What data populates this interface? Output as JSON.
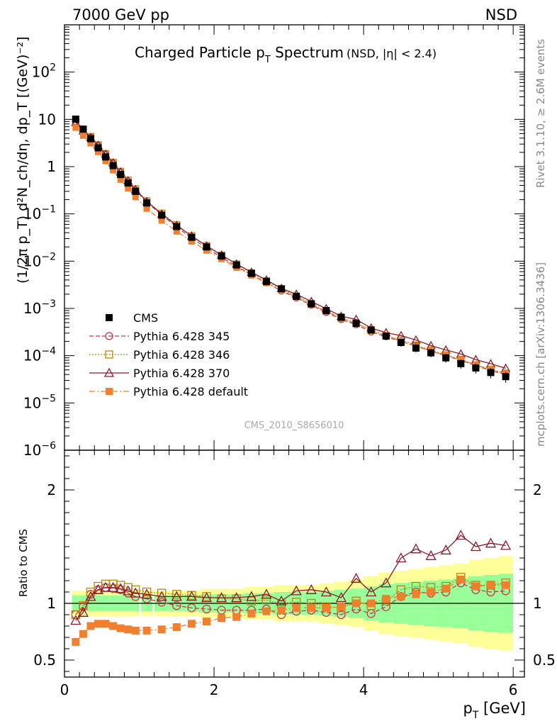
{
  "header": {
    "energy_label": "7000 GeV pp",
    "process_label": "NSD"
  },
  "side_labels": {
    "rivet": "Rivet 3.1.10, ≥ 2.6M events",
    "mcplots": "mcplots.cern.ch [arXiv:1306.3436]"
  },
  "chart_data": [
    {
      "type": "scatter",
      "panel": "main",
      "title": "Charged Particle p",
      "title_sub": "T",
      "title_tail": " Spectrum",
      "title_note": "(NSD, |η| < 2.4)",
      "ylabel": "(1/2π p_T) d²N_ch/dη, dp_T [(GeV)⁻²]",
      "yscale": "log",
      "xlim": [
        0,
        6.15
      ],
      "ylim": [
        1e-06,
        1000
      ],
      "watermark": "CMS_2010_S8656010",
      "y_tick_labels": [
        {
          "v": 1e-06,
          "base": "10",
          "exp": "−6"
        },
        {
          "v": 1e-05,
          "base": "10",
          "exp": "−5"
        },
        {
          "v": 0.0001,
          "base": "10",
          "exp": "−4"
        },
        {
          "v": 0.001,
          "base": "10",
          "exp": "−3"
        },
        {
          "v": 0.01,
          "base": "10",
          "exp": "−2"
        },
        {
          "v": 0.1,
          "base": "10",
          "exp": "−1"
        },
        {
          "v": 1,
          "base": "1",
          "exp": ""
        },
        {
          "v": 10,
          "base": "10",
          "exp": ""
        },
        {
          "v": 100,
          "base": "10",
          "exp": "2"
        }
      ],
      "legend": [
        {
          "name": "CMS",
          "color": "#000000",
          "marker": "square-filled",
          "dash": ""
        },
        {
          "name": "Pythia 6.428 345",
          "color": "#c0394f",
          "marker": "circle-open",
          "dash": "6,3"
        },
        {
          "name": "Pythia 6.428 346",
          "color": "#b8860b",
          "marker": "square-open",
          "dash": "2,2"
        },
        {
          "name": "Pythia 6.428 370",
          "color": "#8b1a2b",
          "marker": "triangle-open",
          "dash": ""
        },
        {
          "name": "Pythia 6.428 default",
          "color": "#f08030",
          "marker": "square-filled",
          "dash": "8,3,2,3"
        }
      ],
      "x": [
        0.15,
        0.25,
        0.35,
        0.45,
        0.55,
        0.65,
        0.75,
        0.85,
        0.95,
        1.1,
        1.3,
        1.5,
        1.7,
        1.9,
        2.1,
        2.3,
        2.5,
        2.7,
        2.9,
        3.1,
        3.3,
        3.5,
        3.7,
        3.9,
        4.1,
        4.3,
        4.5,
        4.7,
        4.9,
        5.1,
        5.3,
        5.5,
        5.7,
        5.9
      ],
      "data_y": [
        10.1,
        6.2,
        3.9,
        2.5,
        1.6,
        1.05,
        0.68,
        0.45,
        0.3,
        0.17,
        0.094,
        0.054,
        0.032,
        0.02,
        0.0128,
        0.0083,
        0.0055,
        0.0037,
        0.0026,
        0.0018,
        0.00125,
        0.0009,
        0.00065,
        0.00048,
        0.00035,
        0.00026,
        0.00019,
        0.000145,
        0.000115,
        9e-05,
        6.8e-05,
        5.5e-05,
        4.4e-05,
        3.6e-05
      ],
      "data_err_frac": [
        0.07,
        0.07,
        0.07,
        0.07,
        0.07,
        0.07,
        0.07,
        0.07,
        0.07,
        0.07,
        0.07,
        0.07,
        0.07,
        0.08,
        0.08,
        0.08,
        0.09,
        0.09,
        0.1,
        0.1,
        0.1,
        0.11,
        0.12,
        0.13,
        0.15,
        0.17,
        0.18,
        0.19,
        0.2,
        0.21,
        0.22,
        0.24,
        0.25,
        0.26
      ],
      "ratios": [
        [
          0.9,
          0.97,
          1.08,
          1.12,
          1.14,
          1.13,
          1.12,
          1.09,
          1.06,
          1.04,
          1.01,
          0.98,
          0.96,
          0.95,
          0.94,
          0.94,
          0.94,
          0.95,
          0.9,
          0.93,
          0.94,
          0.92,
          0.9,
          0.95,
          0.91,
          0.97,
          1.06,
          1.1,
          1.09,
          1.1,
          1.18,
          1.12,
          1.1,
          1.11
        ],
        [
          0.9,
          0.98,
          1.1,
          1.15,
          1.17,
          1.17,
          1.16,
          1.14,
          1.12,
          1.1,
          1.09,
          1.08,
          1.07,
          1.06,
          1.04,
          1.04,
          1.02,
          1.03,
          0.99,
          1.01,
          1.0,
          0.97,
          0.96,
          1.02,
          0.98,
          1.02,
          1.12,
          1.15,
          1.14,
          1.15,
          1.23,
          1.16,
          1.16,
          1.18
        ],
        [
          0.85,
          0.92,
          1.06,
          1.12,
          1.14,
          1.14,
          1.13,
          1.11,
          1.09,
          1.08,
          1.06,
          1.06,
          1.06,
          1.05,
          1.05,
          1.05,
          1.06,
          1.08,
          1.02,
          1.11,
          1.12,
          1.1,
          1.05,
          1.22,
          1.1,
          1.18,
          1.4,
          1.48,
          1.42,
          1.47,
          1.6,
          1.5,
          1.53,
          1.51
        ],
        [
          0.66,
          0.73,
          0.8,
          0.82,
          0.82,
          0.8,
          0.78,
          0.77,
          0.76,
          0.76,
          0.77,
          0.79,
          0.82,
          0.84,
          0.87,
          0.88,
          0.91,
          0.93,
          0.94,
          0.96,
          0.96,
          0.96,
          0.97,
          1.0,
          1.0,
          1.04,
          1.06,
          1.08,
          1.1,
          1.13,
          1.21,
          1.15,
          1.16,
          1.16
        ]
      ]
    },
    {
      "type": "scatter",
      "panel": "ratio",
      "ylabel": "Ratio to CMS",
      "xlabel_main": "p",
      "xlabel_sub": "T",
      "xlabel_unit": " [GeV]",
      "ylim": [
        0.35,
        2.35
      ],
      "xlim": [
        0,
        6.15
      ],
      "x_ticks": [
        0,
        2,
        4,
        6
      ],
      "x_tick_labels": [
        "0",
        "2",
        "4",
        "6"
      ],
      "y_ticks": [
        0.5,
        1,
        2
      ],
      "y_tick_labels": [
        "0.5",
        "1",
        "2"
      ],
      "band_colors": {
        "stat": "#99ff99",
        "total": "#ffff99"
      }
    }
  ]
}
